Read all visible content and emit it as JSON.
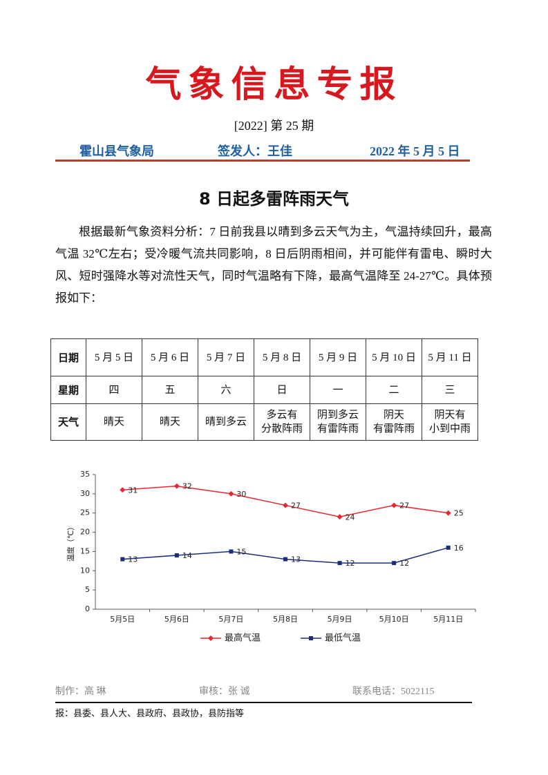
{
  "header": {
    "title": "气象信息专报",
    "issue": "[2022] 第 25 期",
    "org": "霍山县气象局",
    "signer": "签发人：王佳",
    "date": "2022 年 5 月 5 日"
  },
  "article": {
    "title": "8 日起多雷阵雨天气",
    "body": "根据最新气象资料分析：7 日前我县以晴到多云天气为主，气温持续回升，最高气温 32℃左右；受冷暖气流共同影响，8 日后阴雨相间，并可能伴有雷电、瞬时大风、短时强降水等对流性天气，同时气温略有下降，最高气温降至 24-27℃。具体预报如下："
  },
  "table": {
    "rows": [
      [
        "日期",
        "5 月 5 日",
        "5 月 6 日",
        "5 月 7 日",
        "5 月 8 日",
        "5 月 9 日",
        "5 月 10 日",
        "5 月 11 日"
      ],
      [
        "星期",
        "四",
        "五",
        "六",
        "日",
        "一",
        "二",
        "三"
      ],
      [
        "天气",
        "晴天",
        "晴天",
        "晴到多云",
        "多云有\n分散阵雨",
        "阴到多云\n有雷阵雨",
        "阴天\n有雷阵雨",
        "阴天有\n小到中雨"
      ]
    ]
  },
  "chart_data": {
    "type": "line",
    "y_label": "温度（℃）",
    "categories": [
      "5月5日",
      "5月6日",
      "5月7日",
      "5月8日",
      "5月9日",
      "5月10日",
      "5月11日"
    ],
    "series": [
      {
        "name": "最高气温",
        "color": "#e8262d",
        "marker": "diamond",
        "values": [
          31,
          32,
          30,
          27,
          24,
          27,
          25
        ]
      },
      {
        "name": "最低气温",
        "color": "#1d2d7a",
        "marker": "square",
        "values": [
          13,
          14,
          15,
          13,
          12,
          12,
          16
        ]
      }
    ],
    "ylim": [
      0,
      35
    ],
    "yticks": [
      0,
      5,
      10,
      15,
      20,
      25,
      30,
      35
    ],
    "legend": "bottom"
  },
  "footer": {
    "maker": "制作：高 琳",
    "reviewer": "审核：张 诚",
    "phone": "联系电话：5022115",
    "recipients": "报：县委、县人大、县政府、县政协，县防指等"
  }
}
